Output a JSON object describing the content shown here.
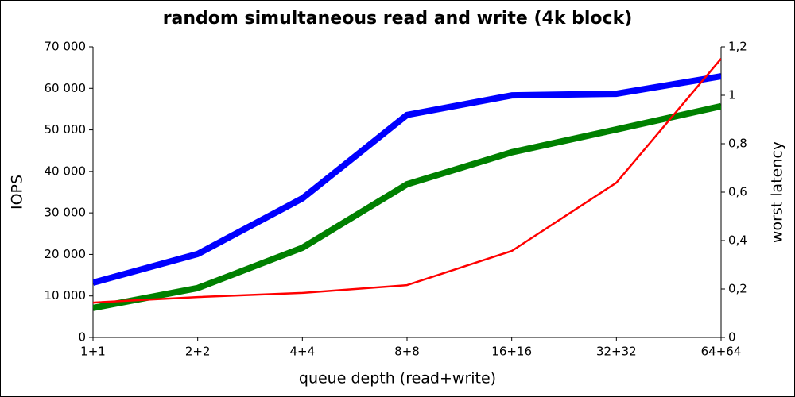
{
  "chart_data": {
    "type": "line",
    "title": "random simultaneous read and write (4k block)",
    "xlabel": "queue depth (read+write)",
    "ylabel": "IOPS",
    "y2label": "worst latency",
    "categories": [
      "1+1",
      "2+2",
      "4+4",
      "8+8",
      "16+16",
      "32+32",
      "64+64"
    ],
    "series": [
      {
        "color": "#0000ff",
        "width": 8,
        "values": [
          13200,
          20100,
          33500,
          53600,
          58300,
          58700,
          62900
        ]
      },
      {
        "color": "#008000",
        "width": 8,
        "values": [
          7100,
          11900,
          21600,
          36900,
          44600,
          50100,
          55700
        ]
      },
      {
        "color": "#ff0000",
        "width": 2.5,
        "axis": "y2",
        "values": [
          0.144,
          0.167,
          0.184,
          0.216,
          0.357,
          0.639,
          1.151
        ]
      }
    ],
    "ylim": [
      0,
      70000
    ],
    "yticks": [
      0,
      {
        "value": 10000,
        "label": "10 000"
      },
      {
        "value": 20000,
        "label": "20 000"
      },
      {
        "value": 30000,
        "label": "30 000"
      },
      {
        "value": 40000,
        "label": "40 000"
      },
      {
        "value": 50000,
        "label": "50 000"
      },
      {
        "value": 60000,
        "label": "60 000"
      },
      {
        "value": 70000,
        "label": "70 000"
      }
    ],
    "y2lim": [
      0,
      1.2
    ],
    "y2ticks": [
      0,
      {
        "value": 0.2,
        "label": "0,2"
      },
      {
        "value": 0.4,
        "label": "0,4"
      },
      {
        "value": 0.6,
        "label": "0,6"
      },
      {
        "value": 0.8,
        "label": "0,8"
      },
      1,
      {
        "value": 1.2,
        "label": "1,2"
      }
    ],
    "grid": false
  }
}
